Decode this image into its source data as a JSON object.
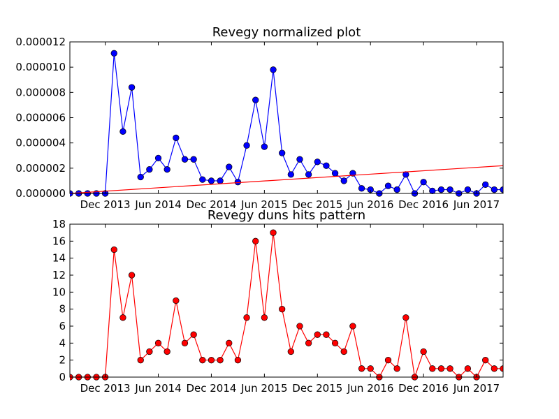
{
  "chart_data": [
    {
      "type": "line",
      "title": "Revegy normalized plot",
      "xlabel": "",
      "ylabel": "",
      "x": [
        1,
        2,
        3,
        4,
        5,
        6,
        7,
        8,
        9,
        10,
        11,
        12,
        13,
        14,
        15,
        16,
        17,
        18,
        19,
        20,
        21,
        22,
        23,
        24,
        25,
        26,
        27,
        28,
        29,
        30,
        31,
        32,
        33,
        34,
        35,
        36,
        37,
        38,
        39,
        40,
        41,
        42,
        43,
        44,
        45,
        46,
        47,
        48,
        49,
        50
      ],
      "x_ticks": [
        {
          "x": 5,
          "label": "Dec 2013"
        },
        {
          "x": 11,
          "label": "Jun 2014"
        },
        {
          "x": 17,
          "label": "Dec 2014"
        },
        {
          "x": 23,
          "label": "Jun 2015"
        },
        {
          "x": 29,
          "label": "Dec 2015"
        },
        {
          "x": 35,
          "label": "Jun 2016"
        },
        {
          "x": 41,
          "label": "Dec 2016"
        },
        {
          "x": 47,
          "label": "Jun 2017"
        }
      ],
      "xlim": [
        1,
        50
      ],
      "ylim": [
        0,
        1.2e-05
      ],
      "y_ticks": [
        "0.000000",
        "0.000002",
        "0.000004",
        "0.000006",
        "0.000008",
        "0.000010",
        "0.000012"
      ],
      "grid": false,
      "series": [
        {
          "color": "#0000ff",
          "marker": "circle",
          "values": [
            0,
            0,
            0,
            0,
            0,
            1.11e-05,
            4.9e-06,
            8.4e-06,
            1.3e-06,
            1.9e-06,
            2.8e-06,
            1.9e-06,
            4.4e-06,
            2.7e-06,
            2.7e-06,
            1.1e-06,
            1e-06,
            1e-06,
            2.1e-06,
            9e-07,
            3.8e-06,
            7.4e-06,
            3.7e-06,
            9.8e-06,
            3.2e-06,
            1.5e-06,
            2.7e-06,
            1.5e-06,
            2.5e-06,
            2.2e-06,
            1.6e-06,
            1e-06,
            1.6e-06,
            4e-07,
            3e-07,
            0,
            6e-07,
            3e-07,
            1.5e-06,
            0,
            9e-07,
            2e-07,
            3e-07,
            3e-07,
            0,
            3e-07,
            0,
            7e-07,
            3e-07,
            3e-07
          ]
        },
        {
          "color": "#ff0000",
          "marker": "none",
          "trendline": true,
          "values_endpoints": {
            "x": [
              1,
              50
            ],
            "y": [
              0,
              2.2e-06
            ]
          }
        }
      ]
    },
    {
      "type": "line",
      "title": "Revegy duns hits pattern",
      "xlabel": "",
      "ylabel": "",
      "x": [
        1,
        2,
        3,
        4,
        5,
        6,
        7,
        8,
        9,
        10,
        11,
        12,
        13,
        14,
        15,
        16,
        17,
        18,
        19,
        20,
        21,
        22,
        23,
        24,
        25,
        26,
        27,
        28,
        29,
        30,
        31,
        32,
        33,
        34,
        35,
        36,
        37,
        38,
        39,
        40,
        41,
        42,
        43,
        44,
        45,
        46,
        47,
        48,
        49,
        50
      ],
      "x_ticks": [
        {
          "x": 5,
          "label": "Dec 2013"
        },
        {
          "x": 11,
          "label": "Jun 2014"
        },
        {
          "x": 17,
          "label": "Dec 2014"
        },
        {
          "x": 23,
          "label": "Jun 2015"
        },
        {
          "x": 29,
          "label": "Dec 2015"
        },
        {
          "x": 35,
          "label": "Jun 2016"
        },
        {
          "x": 41,
          "label": "Dec 2016"
        },
        {
          "x": 47,
          "label": "Jun 2017"
        }
      ],
      "xlim": [
        1,
        50
      ],
      "ylim": [
        0,
        18
      ],
      "y_ticks": [
        "0",
        "2",
        "4",
        "6",
        "8",
        "10",
        "12",
        "14",
        "16",
        "18"
      ],
      "grid": false,
      "series": [
        {
          "color": "#ff0000",
          "marker": "circle",
          "values": [
            0,
            0,
            0,
            0,
            0,
            15,
            7,
            12,
            2,
            3,
            4,
            3,
            9,
            4,
            5,
            2,
            2,
            2,
            4,
            2,
            7,
            16,
            7,
            17,
            8,
            3,
            6,
            4,
            5,
            5,
            4,
            3,
            6,
            1,
            1,
            0,
            2,
            1,
            7,
            0,
            3,
            1,
            1,
            1,
            0,
            1,
            0,
            2,
            1,
            1
          ]
        }
      ]
    }
  ]
}
